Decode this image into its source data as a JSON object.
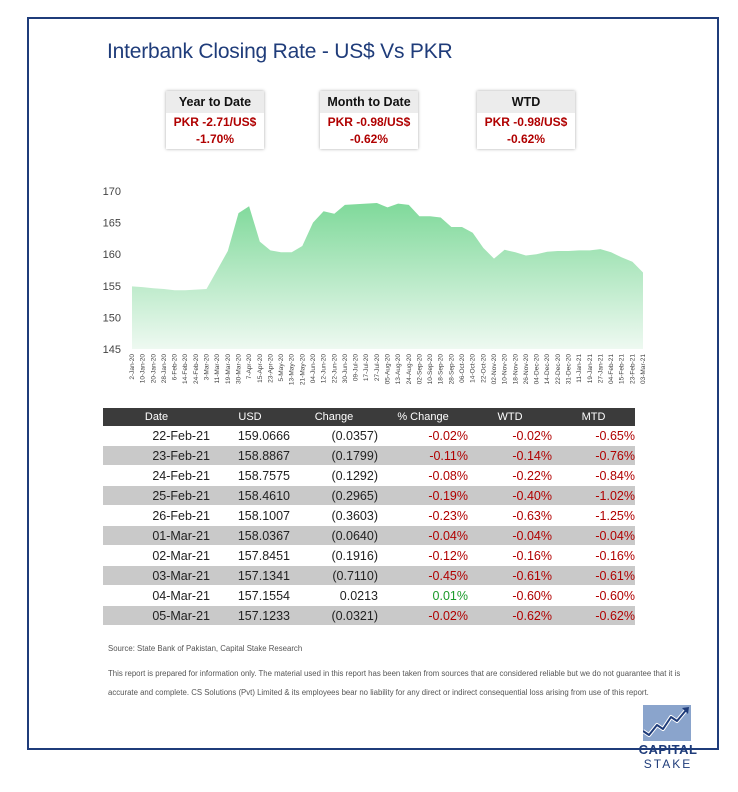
{
  "title": "Interbank Closing Rate - US$ Vs PKR",
  "cards": [
    {
      "header": "Year to Date",
      "value": "PKR -2.71/US$",
      "pct": "-1.70%"
    },
    {
      "header": "Month to Date",
      "value": "PKR -0.98/US$",
      "pct": "-0.62%"
    },
    {
      "header": "WTD",
      "value": "PKR -0.98/US$",
      "pct": "-0.62%"
    }
  ],
  "chart_data": {
    "type": "area",
    "ylim": [
      145,
      170
    ],
    "yticks": [
      145,
      150,
      155,
      160,
      165,
      170
    ],
    "xtick_labels": [
      "2-Jan-20",
      "10-Jan-20",
      "20-Jan-20",
      "28-Jan-20",
      "6-Feb-20",
      "14-Feb-20",
      "24-Feb-20",
      "3-Mar-20",
      "11-Mar-20",
      "19-Mar-20",
      "30-Mar-20",
      "7-Apr-20",
      "15-Apr-20",
      "23-Apr-20",
      "5-May-20",
      "13-May-20",
      "21-May-20",
      "04-Jun-20",
      "12-Jun-20",
      "22-Jun-20",
      "30-Jun-20",
      "09-Jul-20",
      "17-Jul-20",
      "27-Jul-20",
      "05-Aug-20",
      "13-Aug-20",
      "24-Aug-20",
      "02-Sep-20",
      "10-Sep-20",
      "18-Sep-20",
      "28-Sep-20",
      "06-Oct-20",
      "14-Oct-20",
      "22-Oct-20",
      "02-Nov-20",
      "10-Nov-20",
      "18-Nov-20",
      "26-Nov-20",
      "04-Dec-20",
      "14-Dec-20",
      "22-Dec-20",
      "31-Dec-20",
      "11-Jan-21",
      "19-Jan-21",
      "27-Jan-21",
      "04-Feb-21",
      "15-Feb-21",
      "23-Feb-21",
      "03-Mar-21"
    ],
    "x": [
      0,
      1,
      2,
      3,
      4,
      5,
      6,
      7,
      8,
      9,
      10,
      11,
      12,
      13,
      14,
      15,
      16,
      17,
      18,
      19,
      20,
      21,
      22,
      23,
      24,
      25,
      26,
      27,
      28,
      29,
      30,
      31,
      32,
      33,
      34,
      35,
      36,
      37,
      38,
      39,
      40,
      41,
      42,
      43,
      44,
      45,
      46,
      47,
      48
    ],
    "values": [
      154.9,
      154.8,
      154.6,
      154.5,
      154.3,
      154.3,
      154.4,
      154.5,
      157.5,
      160.5,
      166.5,
      167.6,
      162.0,
      160.6,
      160.3,
      160.3,
      161.3,
      165.0,
      166.8,
      166.4,
      167.8,
      167.9,
      168.0,
      168.1,
      167.4,
      168.0,
      167.8,
      166.0,
      166.0,
      165.8,
      164.3,
      164.3,
      163.4,
      161.0,
      159.3,
      160.7,
      160.3,
      159.8,
      160.0,
      160.4,
      160.5,
      160.5,
      160.6,
      160.6,
      160.8,
      160.3,
      159.5,
      158.8,
      157.1
    ]
  },
  "table": {
    "headers": [
      "Date",
      "USD",
      "Change",
      "% Change",
      "WTD",
      "MTD"
    ],
    "rows": [
      {
        "date": "22-Feb-21",
        "usd": "159.0666",
        "change": "(0.0357)",
        "pct": "-0.02%",
        "wtd": "-0.02%",
        "mtd": "-0.65%"
      },
      {
        "date": "23-Feb-21",
        "usd": "158.8867",
        "change": "(0.1799)",
        "pct": "-0.11%",
        "wtd": "-0.14%",
        "mtd": "-0.76%"
      },
      {
        "date": "24-Feb-21",
        "usd": "158.7575",
        "change": "(0.1292)",
        "pct": "-0.08%",
        "wtd": "-0.22%",
        "mtd": "-0.84%"
      },
      {
        "date": "25-Feb-21",
        "usd": "158.4610",
        "change": "(0.2965)",
        "pct": "-0.19%",
        "wtd": "-0.40%",
        "mtd": "-1.02%"
      },
      {
        "date": "26-Feb-21",
        "usd": "158.1007",
        "change": "(0.3603)",
        "pct": "-0.23%",
        "wtd": "-0.63%",
        "mtd": "-1.25%"
      },
      {
        "date": "01-Mar-21",
        "usd": "158.0367",
        "change": "(0.0640)",
        "pct": "-0.04%",
        "wtd": "-0.04%",
        "mtd": "-0.04%"
      },
      {
        "date": "02-Mar-21",
        "usd": "157.8451",
        "change": "(0.1916)",
        "pct": "-0.12%",
        "wtd": "-0.16%",
        "mtd": "-0.16%"
      },
      {
        "date": "03-Mar-21",
        "usd": "157.1341",
        "change": "(0.7110)",
        "pct": "-0.45%",
        "wtd": "-0.61%",
        "mtd": "-0.61%"
      },
      {
        "date": "04-Mar-21",
        "usd": "157.1554",
        "change": "0.0213",
        "pct": "0.01%",
        "wtd": "-0.60%",
        "mtd": "-0.60%"
      },
      {
        "date": "05-Mar-21",
        "usd": "157.1233",
        "change": "(0.0321)",
        "pct": "-0.02%",
        "wtd": "-0.62%",
        "mtd": "-0.62%"
      }
    ]
  },
  "source": "Source: State Bank of Pakistan, Capital Stake Research",
  "disclaimer": "This report is prepared for information only. The material used in this report has been taken from sources that are considered reliable but we do not guarantee that it is accurate and complete. CS Solutions (Pvt) Limited & its employees bear no liability for any direct or indirect consequential loss arising from use of this report.",
  "logo": {
    "line1": "CAPITAL",
    "line2": "STAKE",
    "icon": "rising-chart-icon"
  },
  "colors": {
    "accent": "#1f3c7a",
    "negative": "#b00000",
    "positive": "#1a9a2a",
    "area_top": "#7fd99a",
    "area_bottom": "#e9f8ee"
  }
}
